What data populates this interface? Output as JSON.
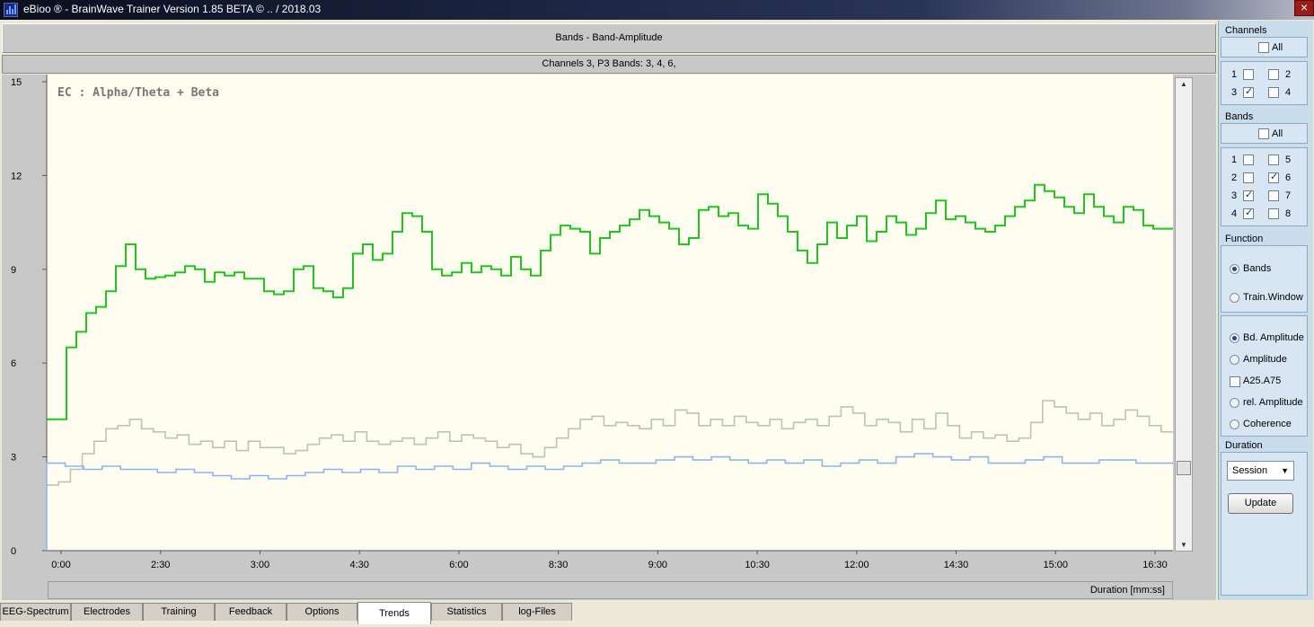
{
  "window": {
    "title": "eBioo ® - BrainWave Trainer Version 1.85 BETA  © ..  / 2018.03"
  },
  "header": {
    "line1": "Bands -  Band-Amplitude",
    "line2": "Channels 3,   P3    Bands: 3, 4, 6,"
  },
  "chart_data": {
    "type": "line",
    "title": "EC : Alpha/Theta + Beta",
    "xlabel": "Duration [mm:ss]",
    "ylabel": "",
    "ylim": [
      0,
      15
    ],
    "yticks": [
      "0",
      "3",
      "6",
      "9",
      "12",
      "15"
    ],
    "xlim": [
      "0:00",
      "16:50"
    ],
    "xticks": [
      "0:00",
      "2:30",
      "3:00",
      "4:30",
      "6:00",
      "8:30",
      "9:00",
      "10:30",
      "12:00",
      "14:30",
      "15:00",
      "16:30"
    ],
    "grid": false,
    "series": [
      {
        "color": "#1fc61f",
        "values": [
          4.2,
          4.2,
          6.5,
          7.0,
          7.6,
          7.8,
          8.3,
          9.1,
          9.8,
          9.0,
          8.7,
          8.75,
          8.8,
          8.9,
          9.1,
          9.0,
          8.6,
          8.9,
          8.8,
          8.9,
          8.7,
          8.7,
          8.3,
          8.2,
          8.3,
          9.0,
          9.1,
          8.4,
          8.3,
          8.1,
          8.4,
          9.5,
          9.8,
          9.3,
          9.5,
          10.2,
          10.8,
          10.7,
          10.2,
          9.0,
          8.8,
          8.9,
          9.2,
          8.9,
          9.1,
          9.0,
          8.8,
          9.4,
          9.0,
          8.8,
          9.6,
          10.1,
          10.4,
          10.3,
          10.2,
          9.5,
          10.0,
          10.2,
          10.4,
          10.6,
          10.9,
          10.7,
          10.5,
          10.3,
          9.8,
          10.0,
          10.9,
          11.0,
          10.7,
          10.8,
          10.4,
          10.3,
          11.4,
          11.1,
          10.7,
          10.2,
          9.6,
          9.2,
          9.8,
          10.5,
          10.0,
          10.4,
          10.7,
          9.9,
          10.2,
          10.7,
          10.5,
          10.1,
          10.3,
          10.8,
          11.2,
          10.6,
          10.7,
          10.5,
          10.3,
          10.2,
          10.4,
          10.7,
          11.0,
          11.2,
          11.7,
          11.5,
          11.3,
          11.0,
          10.8,
          11.4,
          11.0,
          10.7,
          10.5,
          11.0,
          10.9,
          10.4,
          10.3,
          10.3
        ]
      },
      {
        "color": "#b6c8b0",
        "values": [
          2.1,
          2.2,
          2.6,
          3.1,
          3.5,
          3.9,
          4.0,
          4.2,
          3.9,
          3.8,
          3.6,
          3.7,
          3.4,
          3.5,
          3.3,
          3.5,
          3.2,
          3.5,
          3.3,
          3.3,
          3.1,
          3.2,
          3.4,
          3.6,
          3.7,
          3.5,
          3.8,
          3.5,
          3.4,
          3.5,
          3.6,
          3.4,
          3.6,
          3.8,
          3.5,
          3.7,
          3.6,
          3.5,
          3.3,
          3.4,
          3.1,
          3.0,
          3.3,
          3.6,
          3.9,
          4.2,
          4.3,
          4.0,
          4.1,
          4.0,
          3.9,
          4.2,
          4.0,
          4.5,
          4.4,
          4.0,
          4.2,
          4.0,
          4.3,
          4.1,
          4.0,
          4.2,
          3.9,
          4.1,
          4.2,
          4.0,
          4.3,
          4.6,
          4.4,
          4.0,
          4.2,
          4.1,
          3.8,
          4.2,
          3.9,
          4.4,
          4.0,
          3.6,
          3.8,
          3.6,
          3.7,
          3.5,
          3.6,
          4.1,
          4.8,
          4.6,
          4.4,
          4.2,
          4.4,
          4.0,
          4.2,
          4.5,
          4.3,
          4.0,
          3.8
        ]
      },
      {
        "color": "#8eb6ee",
        "values": [
          2.8,
          2.7,
          2.6,
          2.7,
          2.6,
          2.6,
          2.5,
          2.6,
          2.5,
          2.4,
          2.3,
          2.4,
          2.3,
          2.4,
          2.5,
          2.6,
          2.5,
          2.6,
          2.5,
          2.7,
          2.6,
          2.7,
          2.6,
          2.8,
          2.7,
          2.6,
          2.7,
          2.6,
          2.7,
          2.8,
          2.9,
          2.8,
          2.8,
          2.9,
          3.0,
          2.9,
          3.0,
          2.9,
          2.8,
          2.9,
          2.8,
          2.9,
          2.7,
          2.8,
          2.9,
          2.8,
          3.0,
          3.1,
          3.0,
          2.9,
          3.0,
          2.8,
          2.8,
          2.9,
          3.0,
          2.8,
          2.8,
          2.9,
          2.9,
          2.8,
          2.8
        ]
      }
    ]
  },
  "sidebar": {
    "channels": {
      "title": "Channels",
      "all": "All",
      "items": [
        {
          "label": "1",
          "checked": false
        },
        {
          "label": "2",
          "checked": false
        },
        {
          "label": "3",
          "checked": true
        },
        {
          "label": "4",
          "checked": false
        }
      ]
    },
    "bands": {
      "title": "Bands",
      "all": "All",
      "items": [
        {
          "label": "1",
          "checked": false
        },
        {
          "label": "5",
          "checked": false
        },
        {
          "label": "2",
          "checked": false
        },
        {
          "label": "6",
          "checked": true
        },
        {
          "label": "3",
          "checked": true
        },
        {
          "label": "7",
          "checked": false
        },
        {
          "label": "4",
          "checked": true
        },
        {
          "label": "8",
          "checked": false
        }
      ]
    },
    "function": {
      "title": "Function",
      "bands": "Bands",
      "train_window": "Train.Window",
      "bd_amplitude": "Bd. Amplitude",
      "amplitude": "Amplitude",
      "a25": "A25.A75",
      "rel_amplitude": "rel. Amplitude",
      "coherence": "Coherence"
    },
    "duration": {
      "title": "Duration",
      "selected": "Session",
      "update": "Update"
    }
  },
  "tabs": [
    {
      "label": "EEG-Spectrum"
    },
    {
      "label": "Electrodes"
    },
    {
      "label": "Training"
    },
    {
      "label": "Feedback"
    },
    {
      "label": "Options"
    },
    {
      "label": "Trends",
      "active": true
    },
    {
      "label": "Statistics"
    },
    {
      "label": "log-Files"
    }
  ]
}
